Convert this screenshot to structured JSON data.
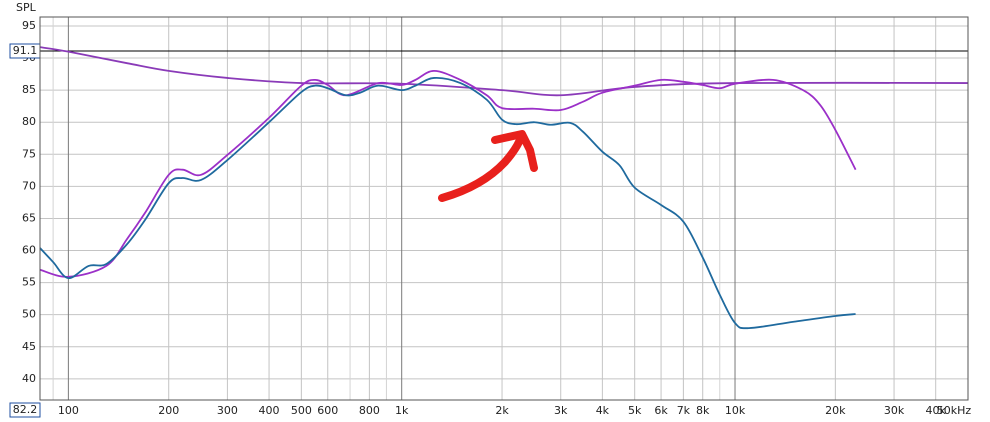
{
  "chart_data": {
    "type": "line",
    "y_label": "SPL",
    "xscale": "log",
    "xlim": [
      82.2,
      50000
    ],
    "ylim": [
      36.7,
      96.4
    ],
    "yticks": [
      40,
      45,
      50,
      55,
      60,
      65,
      70,
      75,
      80,
      85,
      90,
      95
    ],
    "xticks": [
      100,
      200,
      300,
      400,
      500,
      600,
      800,
      {
        "value": 1000,
        "label": "1k"
      },
      {
        "value": 2000,
        "label": "2k"
      },
      {
        "value": 3000,
        "label": "3k"
      },
      {
        "value": 4000,
        "label": "4k"
      },
      {
        "value": 5000,
        "label": "5k"
      },
      {
        "value": 6000,
        "label": "6k"
      },
      {
        "value": 7000,
        "label": "7k"
      },
      {
        "value": 8000,
        "label": "8k"
      },
      {
        "value": 10000,
        "label": "10k"
      },
      {
        "value": 20000,
        "label": "20k"
      },
      {
        "value": 30000,
        "label": "30k"
      },
      {
        "value": 40000,
        "label": "40k"
      },
      {
        "value": 50000,
        "label": "50kHz"
      }
    ],
    "x_minor_ticks": [
      90,
      700,
      900,
      9000
    ],
    "grid": true,
    "cursor_level": 91.1,
    "series": [
      {
        "color": "#8a3ab8",
        "x": [
          82.2,
          100,
          150,
          200,
          300,
          500,
          1000,
          2000,
          3000,
          5000,
          10000,
          50000
        ],
        "values": [
          91.7,
          91.0,
          89.2,
          88.0,
          86.9,
          86.1,
          86.0,
          85.0,
          84.2,
          85.5,
          86.1,
          86.1
        ]
      },
      {
        "color": "#9b30c8",
        "x": [
          82.2,
          100,
          130,
          150,
          170,
          200,
          220,
          250,
          300,
          400,
          500,
          550,
          600,
          680,
          850,
          1000,
          1100,
          1250,
          1500,
          1800,
          2000,
          2500,
          3000,
          3500,
          4000,
          5000,
          6000,
          7000,
          8000,
          9000,
          10000,
          13000,
          16000,
          18000,
          20000,
          23000
        ],
        "values": [
          57.0,
          55.9,
          57.6,
          61.8,
          65.9,
          71.8,
          72.6,
          71.8,
          74.9,
          80.7,
          85.7,
          86.6,
          85.8,
          84.2,
          86.1,
          85.8,
          86.6,
          88.0,
          86.6,
          84.2,
          82.2,
          82.1,
          81.9,
          83.2,
          84.6,
          85.7,
          86.6,
          86.3,
          85.8,
          85.3,
          86.0,
          86.6,
          85.0,
          82.7,
          78.8,
          72.6
        ]
      },
      {
        "color": "#1f6a9e",
        "x": [
          82.2,
          90,
          100,
          115,
          130,
          150,
          170,
          200,
          220,
          250,
          300,
          400,
          500,
          550,
          600,
          680,
          750,
          850,
          1000,
          1100,
          1250,
          1500,
          1800,
          2000,
          2200,
          2500,
          2800,
          3200,
          3500,
          4000,
          4500,
          5000,
          6000,
          7000,
          8000,
          9000,
          10000,
          11000,
          15000,
          20000,
          23000
        ],
        "values": [
          60.4,
          58.2,
          55.7,
          57.6,
          57.9,
          61.0,
          64.8,
          70.5,
          71.3,
          71.0,
          74.1,
          80.0,
          84.7,
          85.7,
          85.3,
          84.2,
          84.6,
          85.7,
          85.0,
          85.7,
          86.9,
          86.1,
          83.5,
          80.4,
          79.7,
          80.0,
          79.6,
          79.9,
          78.5,
          75.4,
          73.3,
          69.8,
          67.1,
          64.5,
          58.9,
          53.1,
          48.7,
          47.9,
          48.9,
          49.8,
          50.1
        ]
      }
    ]
  }
}
